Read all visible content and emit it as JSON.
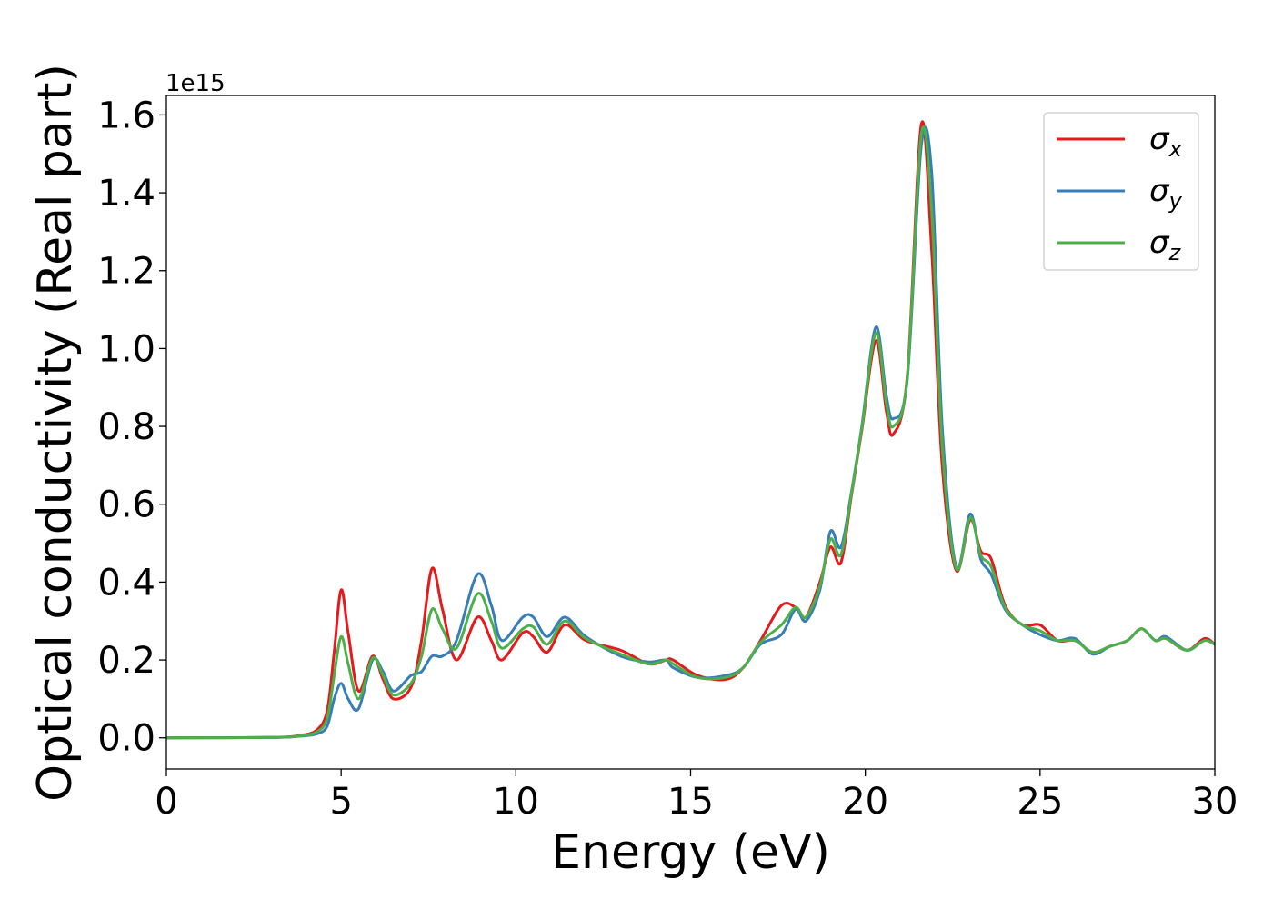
{
  "chart_data": {
    "type": "line",
    "title": "",
    "xlabel": "Energy (eV)",
    "ylabel": "Optical conductivity (Real part)",
    "y_offset_label": "1e15",
    "y_scale_note": "values in units of 1e15",
    "xlim": [
      0,
      30
    ],
    "ylim": [
      -0.08,
      1.65
    ],
    "x_ticks": [
      0,
      5,
      10,
      15,
      20,
      25,
      30
    ],
    "x_tick_labels": [
      "0",
      "5",
      "10",
      "15",
      "20",
      "25",
      "30"
    ],
    "y_ticks": [
      0.0,
      0.2,
      0.4,
      0.6,
      0.8,
      1.0,
      1.2,
      1.4,
      1.6
    ],
    "y_tick_labels": [
      "0.0",
      "0.2",
      "0.4",
      "0.6",
      "0.8",
      "1.0",
      "1.2",
      "1.4",
      "1.6"
    ],
    "grid": false,
    "legend_position": "top-right",
    "series": [
      {
        "name": "σx",
        "symbol": "σ",
        "subscript": "x",
        "color": "#e41a1c",
        "points": [
          [
            0,
            0
          ],
          [
            3,
            0.001
          ],
          [
            3.8,
            0.006
          ],
          [
            4.3,
            0.02
          ],
          [
            4.6,
            0.07
          ],
          [
            4.8,
            0.22
          ],
          [
            5.0,
            0.38
          ],
          [
            5.2,
            0.27
          ],
          [
            5.5,
            0.12
          ],
          [
            5.9,
            0.21
          ],
          [
            6.2,
            0.15
          ],
          [
            6.5,
            0.1
          ],
          [
            7.0,
            0.13
          ],
          [
            7.3,
            0.25
          ],
          [
            7.6,
            0.435
          ],
          [
            7.9,
            0.33
          ],
          [
            8.3,
            0.2
          ],
          [
            8.9,
            0.31
          ],
          [
            9.3,
            0.25
          ],
          [
            9.6,
            0.2
          ],
          [
            10.2,
            0.27
          ],
          [
            10.5,
            0.26
          ],
          [
            10.9,
            0.22
          ],
          [
            11.4,
            0.29
          ],
          [
            12.0,
            0.25
          ],
          [
            13.0,
            0.225
          ],
          [
            13.8,
            0.19
          ],
          [
            14.3,
            0.2
          ],
          [
            14.5,
            0.2
          ],
          [
            15.2,
            0.16
          ],
          [
            16.0,
            0.15
          ],
          [
            16.5,
            0.18
          ],
          [
            17.0,
            0.25
          ],
          [
            17.6,
            0.34
          ],
          [
            18.0,
            0.335
          ],
          [
            18.3,
            0.31
          ],
          [
            18.7,
            0.4
          ],
          [
            19.0,
            0.49
          ],
          [
            19.3,
            0.45
          ],
          [
            19.6,
            0.62
          ],
          [
            19.9,
            0.79
          ],
          [
            20.3,
            1.02
          ],
          [
            20.6,
            0.84
          ],
          [
            20.8,
            0.78
          ],
          [
            21.2,
            0.93
          ],
          [
            21.6,
            1.575
          ],
          [
            21.9,
            1.25
          ],
          [
            22.2,
            0.7
          ],
          [
            22.6,
            0.43
          ],
          [
            23.0,
            0.56
          ],
          [
            23.3,
            0.48
          ],
          [
            23.6,
            0.46
          ],
          [
            24.0,
            0.34
          ],
          [
            24.5,
            0.29
          ],
          [
            25.0,
            0.29
          ],
          [
            25.5,
            0.25
          ],
          [
            26.0,
            0.25
          ],
          [
            26.5,
            0.22
          ],
          [
            27.0,
            0.235
          ],
          [
            27.5,
            0.25
          ],
          [
            27.9,
            0.28
          ],
          [
            28.3,
            0.25
          ],
          [
            28.6,
            0.255
          ],
          [
            29.2,
            0.225
          ],
          [
            29.7,
            0.255
          ],
          [
            30.0,
            0.24
          ]
        ]
      },
      {
        "name": "σy",
        "symbol": "σ",
        "subscript": "y",
        "color": "#377eb8",
        "points": [
          [
            0,
            0
          ],
          [
            3,
            0.001
          ],
          [
            3.8,
            0.004
          ],
          [
            4.3,
            0.01
          ],
          [
            4.6,
            0.03
          ],
          [
            4.8,
            0.1
          ],
          [
            5.0,
            0.14
          ],
          [
            5.2,
            0.1
          ],
          [
            5.5,
            0.075
          ],
          [
            5.9,
            0.2
          ],
          [
            6.2,
            0.17
          ],
          [
            6.5,
            0.12
          ],
          [
            7.0,
            0.16
          ],
          [
            7.3,
            0.17
          ],
          [
            7.6,
            0.21
          ],
          [
            7.9,
            0.21
          ],
          [
            8.3,
            0.25
          ],
          [
            8.9,
            0.42
          ],
          [
            9.3,
            0.34
          ],
          [
            9.6,
            0.25
          ],
          [
            10.2,
            0.31
          ],
          [
            10.5,
            0.31
          ],
          [
            10.9,
            0.26
          ],
          [
            11.4,
            0.31
          ],
          [
            12.0,
            0.26
          ],
          [
            13.0,
            0.21
          ],
          [
            13.8,
            0.195
          ],
          [
            14.3,
            0.2
          ],
          [
            14.5,
            0.18
          ],
          [
            15.2,
            0.155
          ],
          [
            16.0,
            0.16
          ],
          [
            16.5,
            0.18
          ],
          [
            17.0,
            0.24
          ],
          [
            17.6,
            0.265
          ],
          [
            18.0,
            0.33
          ],
          [
            18.3,
            0.3
          ],
          [
            18.7,
            0.38
          ],
          [
            19.0,
            0.53
          ],
          [
            19.3,
            0.49
          ],
          [
            19.6,
            0.63
          ],
          [
            19.9,
            0.8
          ],
          [
            20.3,
            1.055
          ],
          [
            20.6,
            0.88
          ],
          [
            20.8,
            0.82
          ],
          [
            21.2,
            0.92
          ],
          [
            21.6,
            1.52
          ],
          [
            21.9,
            1.45
          ],
          [
            22.2,
            0.8
          ],
          [
            22.6,
            0.44
          ],
          [
            23.0,
            0.575
          ],
          [
            23.3,
            0.46
          ],
          [
            23.6,
            0.42
          ],
          [
            24.0,
            0.33
          ],
          [
            24.5,
            0.29
          ],
          [
            25.0,
            0.265
          ],
          [
            25.5,
            0.25
          ],
          [
            26.0,
            0.255
          ],
          [
            26.5,
            0.215
          ],
          [
            27.0,
            0.235
          ],
          [
            27.5,
            0.25
          ],
          [
            27.9,
            0.28
          ],
          [
            28.3,
            0.25
          ],
          [
            28.6,
            0.26
          ],
          [
            29.2,
            0.225
          ],
          [
            29.7,
            0.25
          ],
          [
            30.0,
            0.24
          ]
        ]
      },
      {
        "name": "σz",
        "symbol": "σ",
        "subscript": "z",
        "color": "#4daf4a",
        "points": [
          [
            0,
            0
          ],
          [
            3,
            0.001
          ],
          [
            3.8,
            0.005
          ],
          [
            4.3,
            0.015
          ],
          [
            4.6,
            0.05
          ],
          [
            4.8,
            0.16
          ],
          [
            5.0,
            0.26
          ],
          [
            5.2,
            0.19
          ],
          [
            5.5,
            0.1
          ],
          [
            5.9,
            0.205
          ],
          [
            6.2,
            0.16
          ],
          [
            6.5,
            0.11
          ],
          [
            7.0,
            0.14
          ],
          [
            7.3,
            0.21
          ],
          [
            7.6,
            0.33
          ],
          [
            7.9,
            0.28
          ],
          [
            8.3,
            0.23
          ],
          [
            8.9,
            0.37
          ],
          [
            9.3,
            0.3
          ],
          [
            9.6,
            0.23
          ],
          [
            10.2,
            0.28
          ],
          [
            10.5,
            0.285
          ],
          [
            10.9,
            0.24
          ],
          [
            11.4,
            0.3
          ],
          [
            12.0,
            0.255
          ],
          [
            13.0,
            0.215
          ],
          [
            13.8,
            0.19
          ],
          [
            14.3,
            0.2
          ],
          [
            14.5,
            0.19
          ],
          [
            15.2,
            0.155
          ],
          [
            16.0,
            0.155
          ],
          [
            16.5,
            0.18
          ],
          [
            17.0,
            0.245
          ],
          [
            17.6,
            0.29
          ],
          [
            18.0,
            0.335
          ],
          [
            18.3,
            0.31
          ],
          [
            18.7,
            0.39
          ],
          [
            19.0,
            0.51
          ],
          [
            19.3,
            0.47
          ],
          [
            19.6,
            0.625
          ],
          [
            19.9,
            0.795
          ],
          [
            20.3,
            1.04
          ],
          [
            20.6,
            0.86
          ],
          [
            20.8,
            0.8
          ],
          [
            21.2,
            0.925
          ],
          [
            21.6,
            1.55
          ],
          [
            21.9,
            1.35
          ],
          [
            22.2,
            0.75
          ],
          [
            22.6,
            0.435
          ],
          [
            23.0,
            0.565
          ],
          [
            23.3,
            0.47
          ],
          [
            23.6,
            0.44
          ],
          [
            24.0,
            0.335
          ],
          [
            24.5,
            0.29
          ],
          [
            25.0,
            0.275
          ],
          [
            25.5,
            0.25
          ],
          [
            26.0,
            0.25
          ],
          [
            26.5,
            0.22
          ],
          [
            27.0,
            0.235
          ],
          [
            27.5,
            0.25
          ],
          [
            27.9,
            0.28
          ],
          [
            28.3,
            0.25
          ],
          [
            28.6,
            0.255
          ],
          [
            29.2,
            0.225
          ],
          [
            29.7,
            0.25
          ],
          [
            30.0,
            0.24
          ]
        ]
      }
    ]
  }
}
